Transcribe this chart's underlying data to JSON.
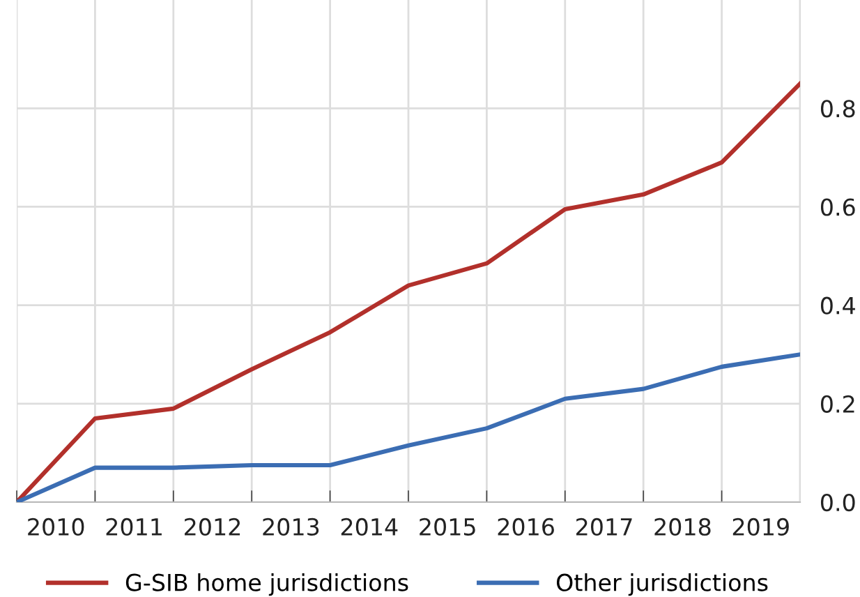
{
  "chart_data": {
    "type": "line",
    "x": [
      2009.5,
      2010.5,
      2011.5,
      2012.5,
      2013.5,
      2014.5,
      2015.5,
      2016.5,
      2017.5,
      2018.5,
      2019.5
    ],
    "series": [
      {
        "name": "G-SIB home jurisdictions",
        "color": "#b2302b",
        "values": [
          0,
          0.17,
          0.19,
          0.27,
          0.345,
          0.44,
          0.485,
          0.595,
          0.625,
          0.69,
          0.85
        ]
      },
      {
        "name": "Other jurisdictions",
        "color": "#3b6db3",
        "values": [
          0,
          0.07,
          0.07,
          0.075,
          0.075,
          0.115,
          0.15,
          0.21,
          0.23,
          0.275,
          0.3
        ]
      }
    ],
    "xlim": [
      2009.5,
      2019.5
    ],
    "xticks": [
      {
        "value": 2009.5,
        "label": null
      },
      {
        "value": 2010,
        "label": "2010"
      },
      {
        "value": 2010.5,
        "label": null
      },
      {
        "value": 2011,
        "label": "2011"
      },
      {
        "value": 2011.5,
        "label": null
      },
      {
        "value": 2012,
        "label": "2012"
      },
      {
        "value": 2012.5,
        "label": null
      },
      {
        "value": 2013,
        "label": "2013"
      },
      {
        "value": 2013.5,
        "label": null
      },
      {
        "value": 2014,
        "label": "2014"
      },
      {
        "value": 2014.5,
        "label": null
      },
      {
        "value": 2015,
        "label": "2015"
      },
      {
        "value": 2015.5,
        "label": null
      },
      {
        "value": 2016,
        "label": "2016"
      },
      {
        "value": 2016.5,
        "label": null
      },
      {
        "value": 2017,
        "label": "2017"
      },
      {
        "value": 2017.5,
        "label": null
      },
      {
        "value": 2018,
        "label": "2018"
      },
      {
        "value": 2018.5,
        "label": null
      },
      {
        "value": 2019,
        "label": "2019"
      },
      {
        "value": 2019.5,
        "label": null
      }
    ],
    "ylim": [
      0,
      1.02
    ],
    "yticks": [
      {
        "value": 0,
        "label": "0.0"
      },
      {
        "value": 0.2,
        "label": "0.2"
      },
      {
        "value": 0.4,
        "label": "0.4"
      },
      {
        "value": 0.6,
        "label": "0.6"
      },
      {
        "value": 0.8,
        "label": "0.8"
      }
    ],
    "grid": true,
    "legend": "bottom",
    "marker": "none",
    "line_style": "solid"
  }
}
